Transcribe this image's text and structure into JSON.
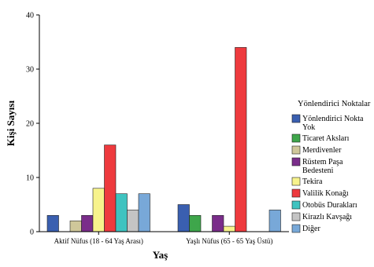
{
  "chart_data": {
    "type": "bar",
    "xlabel": "Yaş",
    "ylabel": "Kişi Sayısı",
    "ylim": [
      0,
      40
    ],
    "yticks": [
      0,
      10,
      20,
      30,
      40
    ],
    "grid": false,
    "legend_position": "right",
    "legend_title": "Yönlendirici Noktalar",
    "categories": [
      "Aktif Nüfus (18 - 64 Yaş Arası)",
      "Yaşlı Nüfus (65 - 65 Yaş Üstü)"
    ],
    "series": [
      {
        "name": "Yönlendirici Nokta Yok",
        "name_lines": [
          "Yönlendirici Nokta",
          "Yok"
        ],
        "color": "#3a5fb0",
        "values": [
          3,
          5
        ]
      },
      {
        "name": "Ticaret Aksları",
        "name_lines": [
          "Ticaret Aksları"
        ],
        "color": "#3ea64b",
        "values": [
          0,
          3
        ]
      },
      {
        "name": "Merdivenler",
        "name_lines": [
          "Merdivenler"
        ],
        "color": "#cfc79a",
        "values": [
          2,
          0
        ]
      },
      {
        "name": "Rüstem Paşa Bedesteni",
        "name_lines": [
          "Rüstem Paşa",
          "Bedesteni"
        ],
        "color": "#7a2d8a",
        "values": [
          3,
          3
        ]
      },
      {
        "name": "Tekira",
        "name_lines": [
          "Tekira"
        ],
        "color": "#f7f38c",
        "values": [
          8,
          1
        ]
      },
      {
        "name": "Valilik Konağı",
        "name_lines": [
          "Valilik Konağı"
        ],
        "color": "#ee3a3e",
        "values": [
          16,
          34
        ]
      },
      {
        "name": "Otobüs Durakları",
        "name_lines": [
          "Otobüs Durakları"
        ],
        "color": "#3fc3c0",
        "values": [
          7,
          0
        ]
      },
      {
        "name": "Kirazlı Kavşağı",
        "name_lines": [
          "Kirazlı Kavşağı"
        ],
        "color": "#c4c4c4",
        "values": [
          4,
          0
        ]
      },
      {
        "name": "Diğer",
        "name_lines": [
          "Diğer"
        ],
        "color": "#78a8d8",
        "values": [
          7,
          4
        ]
      }
    ]
  }
}
